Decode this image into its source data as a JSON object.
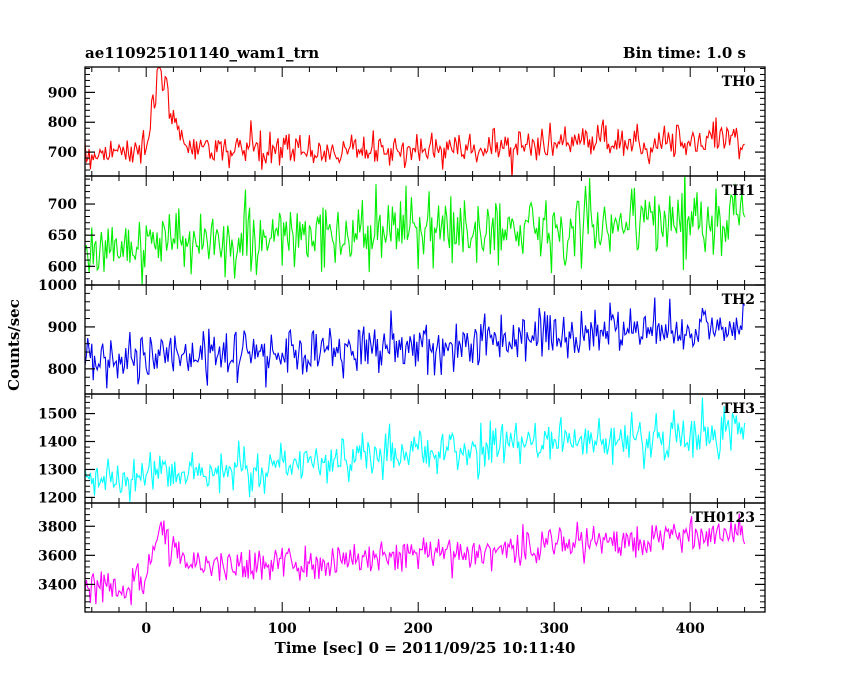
{
  "chart_data": {
    "type": "line",
    "title": "ae110925101140_wam1_trn",
    "subtitle": "Bin time: 1.0 s",
    "xlabel": "Time [sec] 0 = 2011/09/25 10:11:40",
    "ylabel": "Counts/sec",
    "xlim": [
      -45,
      455
    ],
    "x_ticks": [
      0,
      100,
      200,
      300,
      400
    ],
    "grid": false,
    "panels": [
      {
        "name": "TH0",
        "color": "#ff0000",
        "ylim": [
          620,
          985
        ],
        "y_ticks": [
          700,
          800,
          900
        ],
        "x": [
          -45,
          -30,
          -15,
          0,
          5,
          10,
          15,
          20,
          30,
          50,
          100,
          150,
          200,
          250,
          300,
          350,
          400,
          440
        ],
        "values": [
          690,
          700,
          705,
          720,
          870,
          940,
          900,
          790,
          730,
          710,
          705,
          705,
          710,
          715,
          730,
          735,
          740,
          740
        ]
      },
      {
        "name": "TH1",
        "color": "#00ee00",
        "ylim": [
          570,
          745
        ],
        "y_ticks": [
          600,
          650,
          700
        ],
        "x": [
          -45,
          0,
          50,
          100,
          150,
          200,
          250,
          300,
          350,
          400,
          440
        ],
        "values": [
          630,
          635,
          640,
          645,
          650,
          655,
          660,
          665,
          670,
          675,
          680
        ]
      },
      {
        "name": "TH2",
        "color": "#0000ee",
        "ylim": [
          740,
          1000
        ],
        "y_ticks": [
          800,
          900,
          1000
        ],
        "x": [
          -45,
          0,
          50,
          100,
          150,
          200,
          250,
          300,
          350,
          400,
          440
        ],
        "values": [
          820,
          825,
          835,
          840,
          850,
          855,
          865,
          880,
          890,
          900,
          900
        ]
      },
      {
        "name": "TH3",
        "color": "#00ffff",
        "ylim": [
          1180,
          1570
        ],
        "y_ticks": [
          1200,
          1300,
          1400,
          1500
        ],
        "x": [
          -45,
          0,
          50,
          100,
          150,
          200,
          250,
          300,
          350,
          400,
          440
        ],
        "values": [
          1260,
          1280,
          1300,
          1320,
          1340,
          1360,
          1380,
          1400,
          1410,
          1420,
          1440
        ]
      },
      {
        "name": "TH0123",
        "color": "#ff00ff",
        "ylim": [
          3210,
          3960
        ],
        "y_ticks": [
          3400,
          3600,
          3800
        ],
        "x": [
          -45,
          -30,
          -15,
          0,
          5,
          10,
          15,
          20,
          30,
          50,
          100,
          150,
          200,
          250,
          300,
          350,
          400,
          440
        ],
        "values": [
          3360,
          3380,
          3400,
          3460,
          3680,
          3800,
          3720,
          3650,
          3560,
          3520,
          3540,
          3570,
          3600,
          3640,
          3680,
          3710,
          3740,
          3750
        ]
      }
    ]
  }
}
